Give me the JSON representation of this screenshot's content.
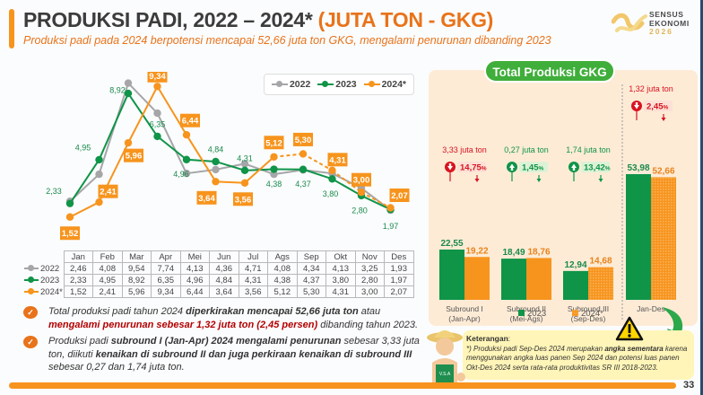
{
  "header": {
    "title_main": "PRODUKSI PADI, 2022 – 2024*",
    "title_accent": "(JUTA TON - GKG)",
    "subtitle": "Produksi padi pada 2024 berpotensi mencapai 52,66 juta ton GKG, mengalami penurunan dibanding 2023",
    "logo": {
      "line1": "SENSUS",
      "line2": "EKONOMI",
      "line3": "2026"
    }
  },
  "colors": {
    "s2022": "#a6a6a8",
    "s2023": "#0f9448",
    "s2024": "#f7941d",
    "down": "#d9121f",
    "up": "#0f9448"
  },
  "chart_data": [
    {
      "type": "line",
      "title": "Produksi Padi Bulanan (juta ton GKG)",
      "categories": [
        "Jan",
        "Feb",
        "Mar",
        "Apr",
        "Mei",
        "Jun",
        "Jul",
        "Ags",
        "Sep",
        "Okt",
        "Nov",
        "Des"
      ],
      "series": [
        {
          "name": "2022",
          "values": [
            2.46,
            4.08,
            9.54,
            7.74,
            4.13,
            4.36,
            4.71,
            4.08,
            4.34,
            4.13,
            3.25,
            1.93
          ],
          "labels": [
            "2,46",
            "4,08",
            "9,54",
            "7,74",
            "4,13",
            "4,36",
            "4,71",
            "4,08",
            "4,34",
            "4,13",
            "3,25",
            "1,93"
          ]
        },
        {
          "name": "2023",
          "values": [
            2.33,
            4.95,
            8.92,
            6.35,
            4.96,
            4.84,
            4.31,
            4.38,
            4.37,
            3.8,
            2.8,
            1.97
          ],
          "labels": [
            "2,33",
            "4,95",
            "8,92",
            "6,35",
            "4,96",
            "4,84",
            "4,31",
            "4,38",
            "4,37",
            "3,80",
            "2,80",
            "1,97"
          ]
        },
        {
          "name": "2024*",
          "values": [
            1.52,
            2.41,
            5.96,
            9.34,
            6.44,
            3.64,
            3.56,
            5.12,
            5.3,
            4.31,
            3.0,
            2.07
          ],
          "labels": [
            "1,52",
            "2,41",
            "5,96",
            "9,34",
            "6,44",
            "3,64",
            "3,56",
            "5,12",
            "5,30",
            "4,31",
            "3,00",
            "2,07"
          ],
          "dashed_from_index": 7
        }
      ],
      "legend": [
        "2022",
        "2023",
        "2024*"
      ],
      "legend_position": "top-right",
      "ylim": [
        0,
        10
      ],
      "grid": false,
      "data_table": true
    },
    {
      "type": "bar",
      "title": "Total Produksi GKG",
      "categories": [
        "Subround I (Jan-Apr)",
        "Subround II (Mei-Ags)",
        "Subround III (Sep-Des)",
        "Jan-Des"
      ],
      "category_lines": [
        [
          "Subround I",
          "(Jan-Apr)"
        ],
        [
          "Subround II",
          "(Mei-Ags)"
        ],
        [
          "Subround III",
          "(Sep-Des)"
        ],
        [
          "Jan-Des"
        ]
      ],
      "series": [
        {
          "name": "2023",
          "values": [
            22.55,
            18.49,
            12.94,
            53.98
          ],
          "labels": [
            "22,55",
            "18,49",
            "12,94",
            "53,98"
          ]
        },
        {
          "name": "2024*",
          "values": [
            19.22,
            18.76,
            14.68,
            52.66
          ],
          "labels": [
            "19,22",
            "18,76",
            "14,68",
            "52,66"
          ]
        }
      ],
      "changes": [
        {
          "amount": "3,33 juta ton",
          "percent": "14,75",
          "direction": "down"
        },
        {
          "amount": "0,27 juta ton",
          "percent": "1,45",
          "direction": "up"
        },
        {
          "amount": "1,74 juta ton",
          "percent": "13,42",
          "direction": "up"
        },
        {
          "amount": "1,32 juta ton",
          "percent": "2,45",
          "direction": "down"
        }
      ],
      "percent_suffix": "%",
      "legend": [
        "2023",
        "2024*"
      ],
      "legend_position": "bottom"
    }
  ],
  "notes": [
    {
      "parts": [
        {
          "t": "Total produksi padi tahun 2024 ",
          "s": "n"
        },
        {
          "t": "diperkirakan mencapai 52,66 juta ton",
          "s": "b"
        },
        {
          "t": " atau ",
          "s": "n"
        },
        {
          "t": "mengalami penurunan sebesar 1,32 juta ton (2,45 persen)",
          "s": "r"
        },
        {
          "t": " dibanding tahun 2023.",
          "s": "n"
        }
      ]
    },
    {
      "parts": [
        {
          "t": "Produksi padi ",
          "s": "n"
        },
        {
          "t": "subround I (Jan-Apr) 2024 mengalami penurunan",
          "s": "b"
        },
        {
          "t": " sebesar 3,33 juta ton, diikuti ",
          "s": "n"
        },
        {
          "t": "kenaikan di subround II dan juga perkiraan kenaikan di subround III",
          "s": "b"
        },
        {
          "t": " sebesar 0,27 dan 1,74 juta ton.",
          "s": "n"
        }
      ]
    }
  ],
  "keterangan": {
    "title": "Keterangan",
    "body_1": "*) Produksi padi Sep-Des 2024 merupakan ",
    "body_bold": "angka sementara",
    "body_2": " karena menggunakan angka luas panen Sep 2024 dan potensi luas panen Okt-Des 2024 serta rata-rata produktivitas SR III 2018-2023.",
    "apron_text": "V.S.A"
  },
  "page_number": "33"
}
